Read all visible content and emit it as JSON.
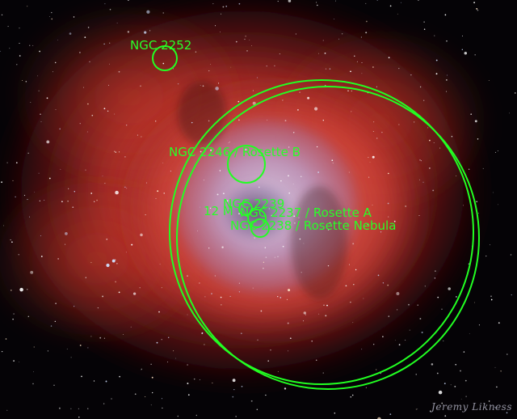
{
  "annotations": {
    "ngc2252": "NGC 2252",
    "ngc2246": "NGC 2246 / Rosette B",
    "ngc2239": "NGC 2239",
    "m12": "12 M",
    "ngc2237": "NGC 2237 / Rosette A",
    "ngc2238": "NGC 2238 / Rosette Nebula"
  },
  "credit": "Jeremy Likness",
  "colors": {
    "annotation": "#22ff22",
    "nebula_red": "#c8392a",
    "nebula_core": "#b9a7d6",
    "background": "#050306"
  }
}
